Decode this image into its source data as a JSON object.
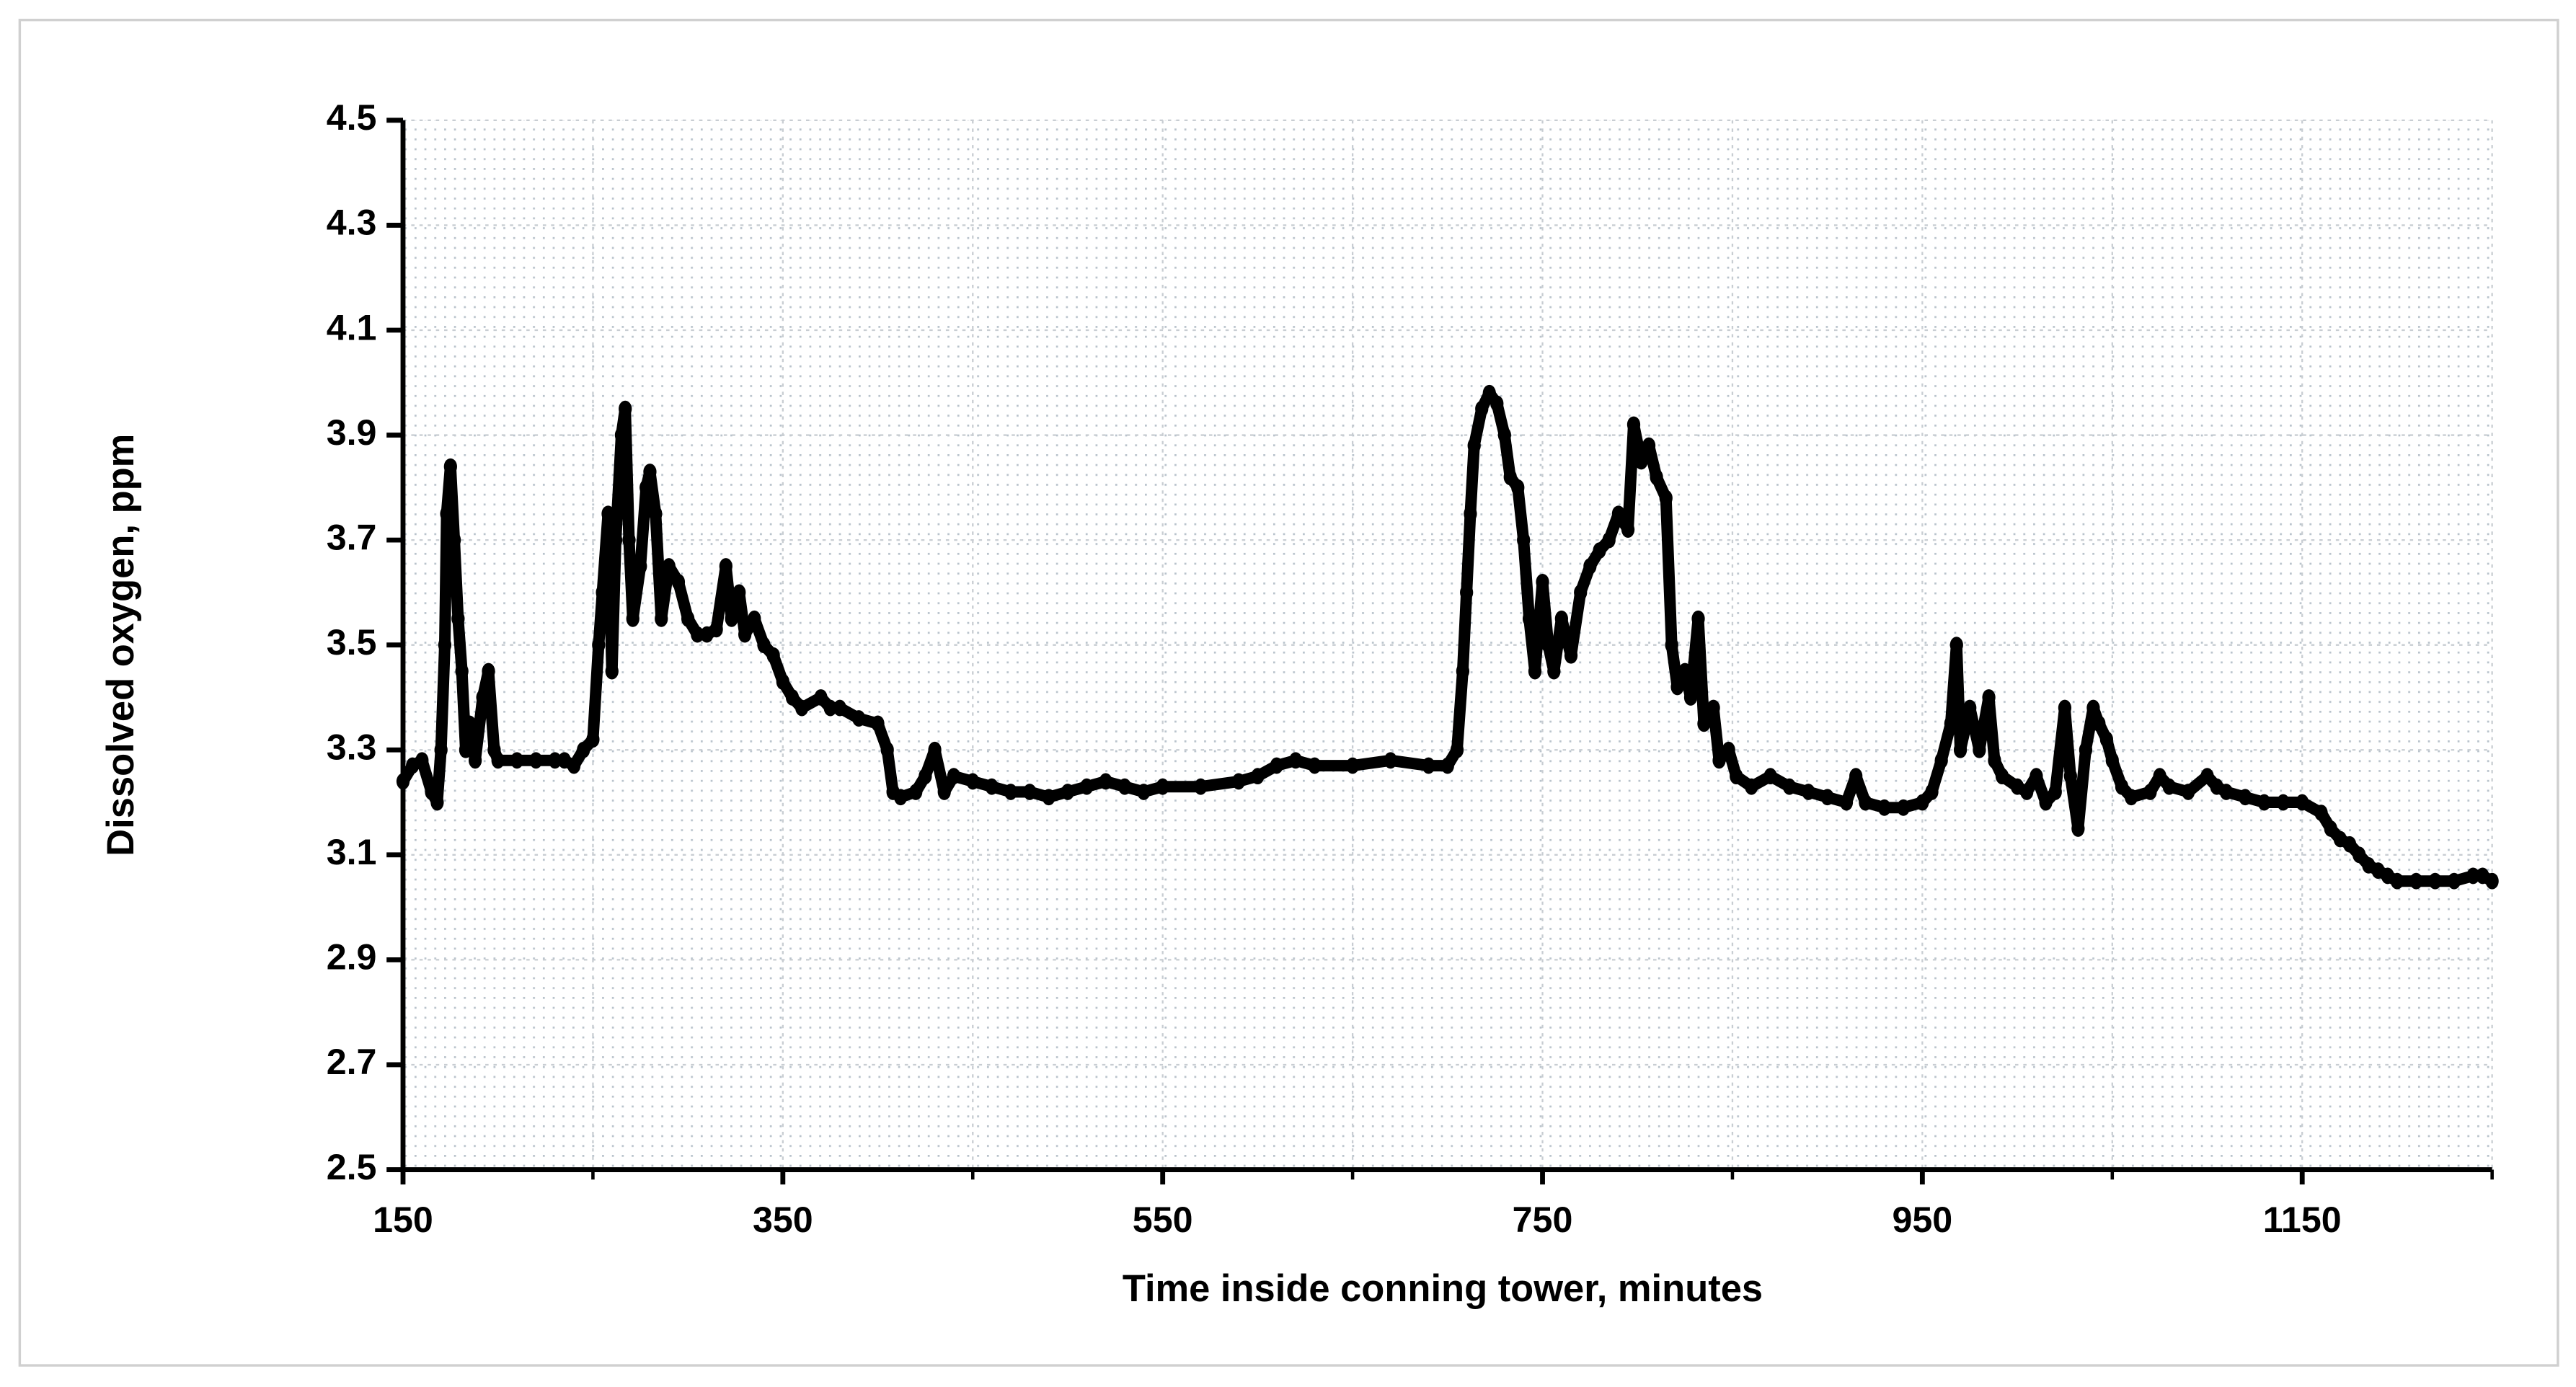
{
  "chart_data": {
    "type": "scatter",
    "xlabel": "Time inside conning tower, minutes",
    "ylabel": "Dissolved oxygen, ppm",
    "xlim": [
      150,
      1250
    ],
    "xticks": [
      150,
      350,
      550,
      750,
      950,
      1150
    ],
    "xminorticks": [
      250,
      450,
      650,
      850,
      1050,
      1250
    ],
    "ylim": [
      2.5,
      4.5
    ],
    "yticks": [
      2.5,
      2.7,
      2.9,
      3.1,
      3.3,
      3.5,
      3.7,
      3.9,
      4.1,
      4.3,
      4.5
    ],
    "grid": true,
    "color": "#000000",
    "x": [
      150,
      155,
      160,
      165,
      168,
      170,
      172,
      173,
      175,
      177,
      179,
      181,
      183,
      185,
      188,
      192,
      195,
      198,
      200,
      210,
      220,
      230,
      235,
      240,
      245,
      250,
      253,
      255,
      258,
      260,
      262,
      265,
      267,
      269,
      271,
      275,
      278,
      280,
      283,
      286,
      290,
      295,
      300,
      305,
      310,
      315,
      320,
      323,
      327,
      330,
      335,
      340,
      345,
      350,
      355,
      360,
      370,
      375,
      380,
      390,
      400,
      405,
      408,
      412,
      420,
      425,
      430,
      435,
      440,
      450,
      460,
      470,
      480,
      490,
      500,
      510,
      520,
      530,
      540,
      550,
      570,
      590,
      600,
      610,
      620,
      630,
      650,
      670,
      690,
      700,
      705,
      708,
      710,
      712,
      714,
      718,
      722,
      726,
      730,
      733,
      737,
      740,
      743,
      746,
      750,
      753,
      756,
      760,
      765,
      770,
      775,
      780,
      785,
      790,
      795,
      798,
      802,
      806,
      810,
      815,
      818,
      821,
      825,
      828,
      832,
      835,
      840,
      843,
      848,
      852,
      860,
      870,
      880,
      890,
      900,
      910,
      915,
      920,
      930,
      940,
      950,
      955,
      960,
      965,
      968,
      970,
      975,
      980,
      985,
      988,
      992,
      1000,
      1005,
      1010,
      1015,
      1020,
      1025,
      1028,
      1032,
      1036,
      1040,
      1043,
      1047,
      1050,
      1055,
      1060,
      1070,
      1075,
      1080,
      1090,
      1100,
      1105,
      1110,
      1120,
      1130,
      1140,
      1150,
      1160,
      1165,
      1170,
      1175,
      1180,
      1185,
      1190,
      1195,
      1200,
      1210,
      1220,
      1230,
      1240,
      1245,
      1250
    ],
    "y": [
      3.24,
      3.27,
      3.28,
      3.22,
      3.2,
      3.3,
      3.5,
      3.75,
      3.84,
      3.7,
      3.55,
      3.45,
      3.3,
      3.35,
      3.28,
      3.4,
      3.45,
      3.3,
      3.28,
      3.28,
      3.28,
      3.28,
      3.28,
      3.27,
      3.3,
      3.32,
      3.5,
      3.6,
      3.75,
      3.45,
      3.7,
      3.9,
      3.95,
      3.7,
      3.55,
      3.65,
      3.8,
      3.83,
      3.75,
      3.55,
      3.65,
      3.62,
      3.55,
      3.52,
      3.52,
      3.53,
      3.65,
      3.55,
      3.6,
      3.52,
      3.55,
      3.5,
      3.48,
      3.43,
      3.4,
      3.38,
      3.4,
      3.38,
      3.38,
      3.36,
      3.35,
      3.3,
      3.22,
      3.21,
      3.22,
      3.25,
      3.3,
      3.22,
      3.25,
      3.24,
      3.23,
      3.22,
      3.22,
      3.21,
      3.22,
      3.23,
      3.24,
      3.23,
      3.22,
      3.23,
      3.23,
      3.24,
      3.25,
      3.27,
      3.28,
      3.27,
      3.27,
      3.28,
      3.27,
      3.27,
      3.3,
      3.45,
      3.6,
      3.75,
      3.88,
      3.95,
      3.98,
      3.96,
      3.9,
      3.82,
      3.8,
      3.7,
      3.55,
      3.45,
      3.62,
      3.5,
      3.45,
      3.55,
      3.48,
      3.6,
      3.65,
      3.68,
      3.7,
      3.75,
      3.72,
      3.92,
      3.85,
      3.88,
      3.82,
      3.78,
      3.5,
      3.42,
      3.45,
      3.4,
      3.55,
      3.35,
      3.38,
      3.28,
      3.3,
      3.25,
      3.23,
      3.25,
      3.23,
      3.22,
      3.21,
      3.2,
      3.25,
      3.2,
      3.19,
      3.19,
      3.2,
      3.22,
      3.28,
      3.35,
      3.5,
      3.3,
      3.38,
      3.3,
      3.4,
      3.28,
      3.25,
      3.23,
      3.22,
      3.25,
      3.2,
      3.22,
      3.38,
      3.25,
      3.15,
      3.3,
      3.38,
      3.35,
      3.32,
      3.28,
      3.23,
      3.21,
      3.22,
      3.25,
      3.23,
      3.22,
      3.25,
      3.23,
      3.22,
      3.21,
      3.2,
      3.2,
      3.2,
      3.18,
      3.15,
      3.13,
      3.12,
      3.1,
      3.08,
      3.07,
      3.06,
      3.05,
      3.05,
      3.05,
      3.05,
      3.06,
      3.06,
      3.05
    ]
  }
}
